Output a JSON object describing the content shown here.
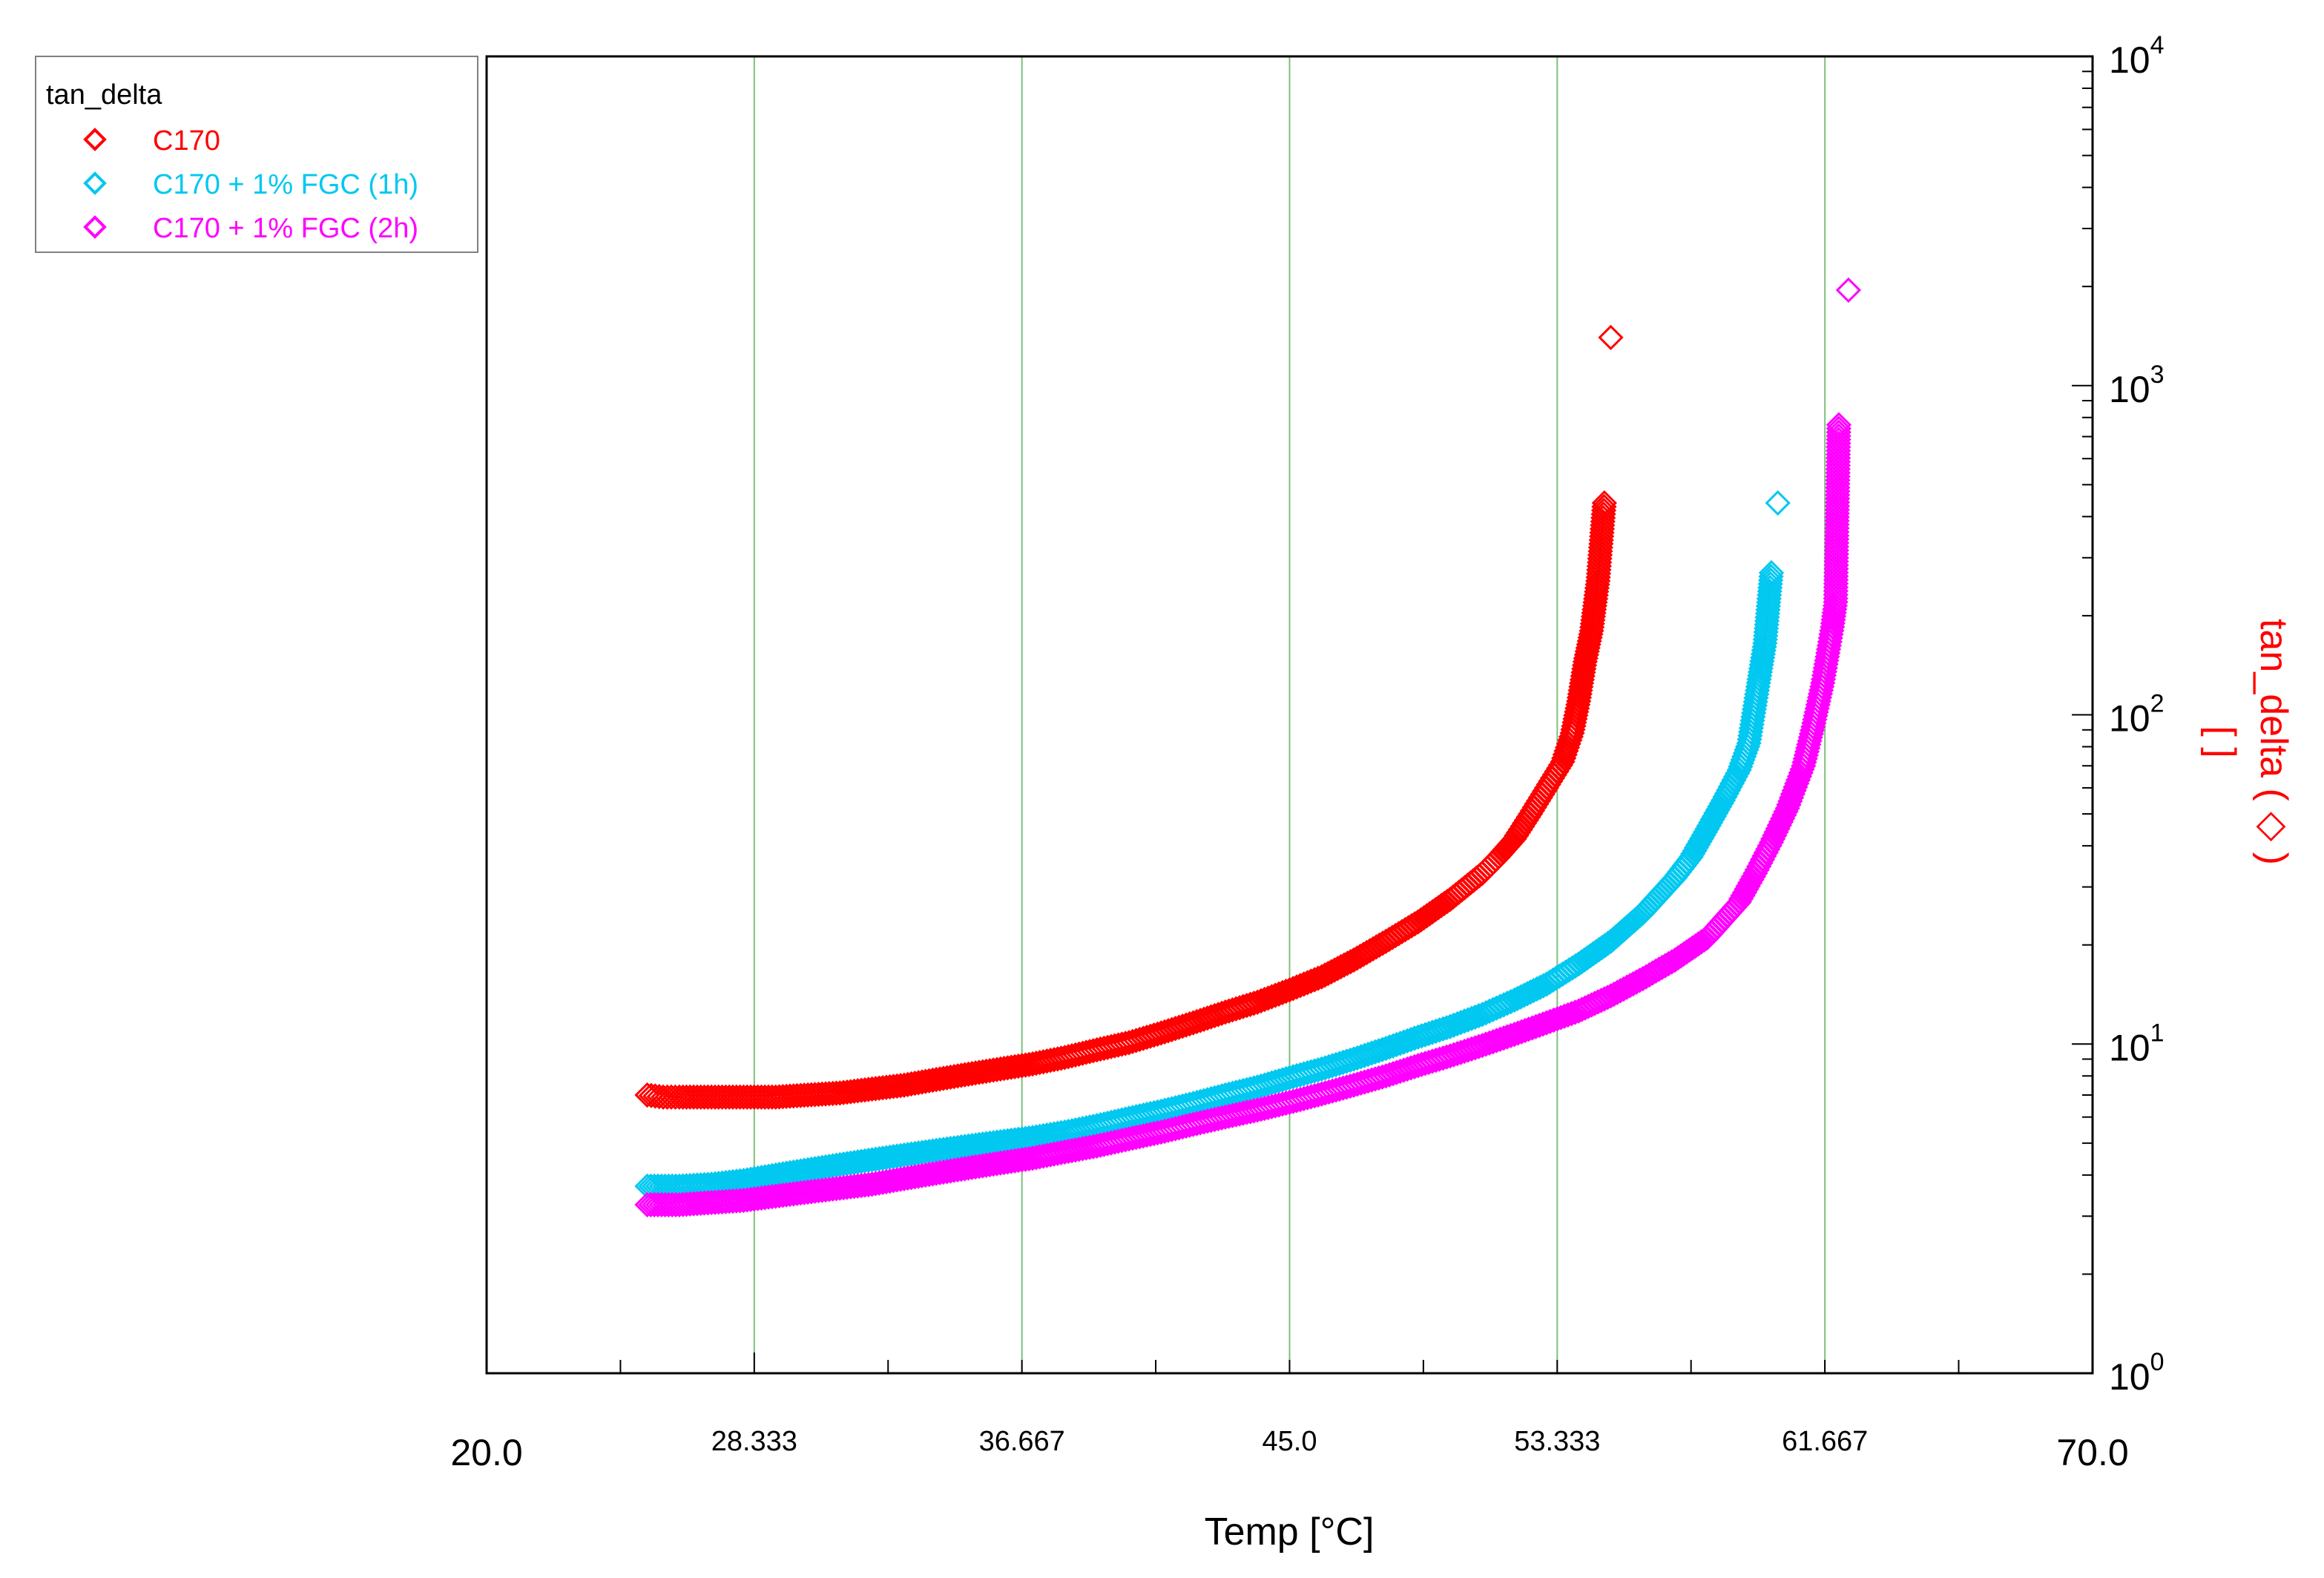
{
  "colors": {
    "c170": "#ff0000",
    "fgc1h": "#00c8f0",
    "fgc2h": "#ff00ff",
    "grid": "#7cc07c",
    "axis": "#000000"
  },
  "legend": {
    "title": "tan_delta",
    "placement": "top-left, outside plot area",
    "marker": "diamond-outline",
    "entries": [
      "C170",
      "C170 + 1% FGC (1h)",
      "C170 + 1% FGC (2h)"
    ]
  },
  "chart_data": {
    "type": "scatter",
    "title": "",
    "xlabel": "Temp [°C]",
    "ylabel": "tan_delta ( ◇ )",
    "ylabel_unit": "[ ]",
    "y_axis_side": "right",
    "y_scale": "log",
    "xlim": [
      20.0,
      70.0
    ],
    "ylim": [
      1,
      10000
    ],
    "x_ticks": [
      "20.0",
      "28.333",
      "36.667",
      "45.0",
      "53.333",
      "61.667",
      "70.0"
    ],
    "x_tick_values": [
      20.0,
      28.333,
      36.667,
      45.0,
      53.333,
      61.667,
      70.0
    ],
    "y_ticks": [
      {
        "base": "10",
        "exp": "0"
      },
      {
        "base": "10",
        "exp": "1"
      },
      {
        "base": "10",
        "exp": "2"
      },
      {
        "base": "10",
        "exp": "3"
      },
      {
        "base": "10",
        "exp": "4"
      }
    ],
    "y_tick_values": [
      1,
      10,
      100,
      1000,
      10000
    ],
    "grid": "vertical lines at major x ticks",
    "series": [
      {
        "name": "C170",
        "color": "#ff0000",
        "x": [
          25.0,
          25.5,
          26.0,
          27.0,
          28.0,
          29.0,
          30.0,
          31.0,
          32.0,
          33.0,
          34.0,
          35.0,
          36.0,
          37.0,
          38.0,
          39.0,
          40.0,
          41.0,
          42.0,
          43.0,
          44.0,
          45.0,
          46.0,
          47.0,
          48.0,
          49.0,
          50.0,
          51.0,
          51.5,
          52.0,
          52.5,
          53.0,
          53.5,
          53.8,
          54.0,
          54.2,
          54.4,
          54.6,
          54.8
        ],
        "y": [
          7.0,
          6.9,
          6.9,
          6.9,
          6.9,
          6.9,
          7.0,
          7.1,
          7.3,
          7.5,
          7.8,
          8.1,
          8.4,
          8.7,
          9.1,
          9.6,
          10.1,
          10.8,
          11.6,
          12.5,
          13.4,
          14.6,
          16.0,
          18.0,
          20.5,
          23.5,
          27.5,
          33.0,
          37.0,
          42.0,
          50.0,
          60.0,
          72.0,
          88.0,
          110.0,
          145.0,
          180.0,
          255.0,
          440.0
        ]
      },
      {
        "name": "C170 + 1% FGC (1h)",
        "color": "#00c8f0",
        "x": [
          25.0,
          26.0,
          27.0,
          28.0,
          29.0,
          30.0,
          31.0,
          32.0,
          33.0,
          34.0,
          35.0,
          36.0,
          37.0,
          38.0,
          39.0,
          40.0,
          41.0,
          42.0,
          43.0,
          44.0,
          45.0,
          46.0,
          47.0,
          48.0,
          49.0,
          50.0,
          51.0,
          52.0,
          53.0,
          54.0,
          55.0,
          56.0,
          57.0,
          57.5,
          58.0,
          58.5,
          59.0,
          59.3,
          59.6,
          59.8,
          60.0
        ],
        "y": [
          3.7,
          3.7,
          3.75,
          3.85,
          4.0,
          4.15,
          4.3,
          4.45,
          4.6,
          4.75,
          4.9,
          5.05,
          5.2,
          5.4,
          5.65,
          5.95,
          6.25,
          6.6,
          7.0,
          7.4,
          7.9,
          8.4,
          9.0,
          9.7,
          10.5,
          11.3,
          12.3,
          13.6,
          15.2,
          17.5,
          20.5,
          25.0,
          32.0,
          37.0,
          45.0,
          55.0,
          68.0,
          82.0,
          125.0,
          165.0,
          270.0
        ]
      },
      {
        "name": "C170 + 1% FGC (2h)",
        "color": "#ff00ff",
        "x": [
          25.0,
          26.0,
          27.0,
          28.0,
          29.0,
          30.0,
          31.0,
          32.0,
          33.0,
          34.0,
          35.0,
          36.0,
          37.0,
          38.0,
          39.0,
          40.0,
          41.0,
          42.0,
          43.0,
          44.0,
          45.0,
          46.0,
          47.0,
          48.0,
          49.0,
          50.0,
          51.0,
          52.0,
          53.0,
          54.0,
          55.0,
          56.0,
          57.0,
          58.0,
          59.0,
          59.5,
          60.0,
          60.5,
          61.0,
          61.3,
          61.6,
          61.9,
          62.0,
          62.1
        ],
        "y": [
          3.25,
          3.25,
          3.3,
          3.35,
          3.45,
          3.55,
          3.65,
          3.75,
          3.9,
          4.05,
          4.2,
          4.35,
          4.5,
          4.7,
          4.9,
          5.15,
          5.4,
          5.7,
          6.0,
          6.3,
          6.65,
          7.05,
          7.5,
          8.0,
          8.6,
          9.2,
          9.9,
          10.7,
          11.6,
          12.6,
          14.0,
          15.8,
          18.0,
          21.0,
          27.0,
          33.0,
          41.0,
          52.0,
          70.0,
          92.0,
          125.0,
          185.0,
          220.0,
          760.0
        ]
      }
    ],
    "outliers": [
      {
        "series": "C170",
        "x": 55.0,
        "y": 1400.0
      },
      {
        "series": "C170 + 1% FGC (1h)",
        "x": 60.2,
        "y": 440.0
      },
      {
        "series": "C170 + 1% FGC (2h)",
        "x": 62.4,
        "y": 1950.0
      }
    ]
  }
}
